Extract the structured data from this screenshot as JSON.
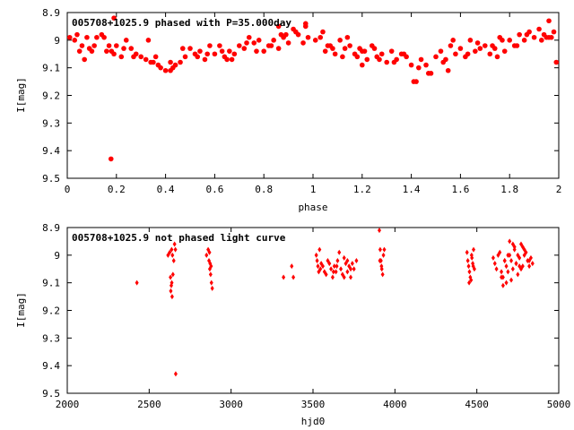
{
  "chart_data": [
    {
      "type": "scatter",
      "title": "005708+1025.9 phased with P=35.000day",
      "xlabel": "phase",
      "ylabel": "I[mag]",
      "xlim": [
        0,
        2
      ],
      "ylim": [
        8.9,
        9.5
      ],
      "y_inverted": true,
      "xticks": [
        "0",
        "0.2",
        "0.4",
        "0.6",
        "0.8",
        "1",
        "1.2",
        "1.4",
        "1.6",
        "1.8",
        "2"
      ],
      "yticks": [
        "8.9",
        "9",
        "9.1",
        "9.2",
        "9.3",
        "9.4",
        "9.5"
      ],
      "marker": "filled-circle",
      "color": "#ff0000",
      "series": [
        {
          "x": [
            0.01,
            0.04,
            0.05,
            0.06,
            0.08,
            0.09,
            0.11,
            0.14,
            0.15,
            0.17,
            0.18,
            0.19,
            0.2,
            0.22,
            0.24,
            0.26,
            0.28,
            0.3,
            0.32,
            0.34,
            0.36,
            0.38,
            0.4,
            0.42,
            0.44,
            0.46,
            0.48,
            0.5,
            0.52,
            0.54,
            0.56,
            0.58,
            0.6,
            0.62,
            0.64,
            0.66,
            0.68,
            0.7,
            0.72,
            0.74,
            0.76,
            0.78,
            0.8,
            0.82,
            0.84,
            0.86,
            0.88,
            0.9,
            0.92,
            0.94,
            0.96,
            0.98,
            1.01,
            1.04,
            1.05,
            1.06,
            1.08,
            1.09,
            1.11,
            1.14,
            1.15,
            1.17,
            1.19,
            1.2,
            1.22,
            1.24,
            1.26,
            1.28,
            1.3,
            1.32,
            1.34,
            1.36,
            1.38,
            1.4,
            1.42,
            1.44,
            1.46,
            1.48,
            1.5,
            1.52,
            1.54,
            1.56,
            1.58,
            1.6,
            1.62,
            1.64,
            1.66,
            1.68,
            1.7,
            1.72,
            1.74,
            1.76,
            1.78,
            1.8,
            1.82,
            1.84,
            1.86,
            1.88,
            1.9,
            1.92,
            1.94,
            1.96,
            1.98,
            0.03,
            0.07,
            0.12,
            0.16,
            0.23,
            0.27,
            0.33,
            0.37,
            0.43,
            0.47,
            0.53,
            0.57,
            0.63,
            0.67,
            0.73,
            0.77,
            0.83,
            0.87,
            0.93,
            0.97,
            1.03,
            1.07,
            1.13,
            1.18,
            1.21,
            1.27,
            1.33,
            1.37,
            1.43,
            1.47,
            1.53,
            1.57,
            1.63,
            1.67,
            1.73,
            1.77,
            1.83,
            1.87,
            1.93,
            1.97,
            0.178,
            0.19,
            0.42,
            0.86,
            1.41,
            1.99,
            1.96,
            1.2,
            0.97,
            0.1,
            0.35,
            0.65,
            0.89,
            1.12,
            1.25,
            1.55,
            1.75,
            1.95
          ],
          "y": [
            8.99,
            8.98,
            9.04,
            9.02,
            8.99,
            9.03,
            9.02,
            8.98,
            8.99,
            9.02,
            9.04,
            9.05,
            9.02,
            9.06,
            9.0,
            9.03,
            9.05,
            9.06,
            9.07,
            9.08,
            9.06,
            9.1,
            9.11,
            9.08,
            9.09,
            9.08,
            9.06,
            9.03,
            9.05,
            9.04,
            9.07,
            9.02,
            9.05,
            9.02,
            9.06,
            9.04,
            9.05,
            9.02,
            9.03,
            8.99,
            9.01,
            9.0,
            9.04,
            9.02,
            9.0,
            9.03,
            8.99,
            9.01,
            8.96,
            8.98,
            9.01,
            8.99,
            9.0,
            8.97,
            9.04,
            9.02,
            9.03,
            9.05,
            9.0,
            8.99,
            9.02,
            9.05,
            9.03,
            9.04,
            9.07,
            9.02,
            9.06,
            9.05,
            9.08,
            9.04,
            9.07,
            9.05,
            9.06,
            9.09,
            9.15,
            9.07,
            9.09,
            9.12,
            9.06,
            9.04,
            9.07,
            9.02,
            9.05,
            9.03,
            9.06,
            9.0,
            9.04,
            9.03,
            9.02,
            9.05,
            9.03,
            8.99,
            9.04,
            9.0,
            9.02,
            8.98,
            9.0,
            8.97,
            8.99,
            8.96,
            8.98,
            8.99,
            8.97,
            9.0,
            9.07,
            8.99,
            9.04,
            9.03,
            9.06,
            9.0,
            9.09,
            9.1,
            9.03,
            9.06,
            9.05,
            9.04,
            9.07,
            9.01,
            9.04,
            9.02,
            8.98,
            8.97,
            8.95,
            8.99,
            9.02,
            9.03,
            9.06,
            9.04,
            9.07,
            9.08,
            9.05,
            9.1,
            9.12,
            9.08,
            9.0,
            9.05,
            9.01,
            9.02,
            9.0,
            9.02,
            8.98,
            9.0,
            8.99,
            9.43,
            8.92,
            9.11,
            8.95,
            9.15,
            9.08,
            8.93,
            9.09,
            8.94,
            9.04,
            9.08,
            9.07,
            8.98,
            9.06,
            9.03,
            9.11,
            9.06,
            8.99
          ]
        }
      ]
    },
    {
      "type": "scatter",
      "title": "005708+1025.9 not phased light curve",
      "xlabel": "hjd0",
      "ylabel": "I[mag]",
      "xlim": [
        2000,
        5000
      ],
      "ylim": [
        8.9,
        9.5
      ],
      "y_inverted": true,
      "xticks": [
        "2000",
        "2500",
        "3000",
        "3500",
        "4000",
        "4500",
        "5000"
      ],
      "yticks": [
        "8.9",
        "9",
        "9.1",
        "9.2",
        "9.3",
        "9.4",
        "9.5"
      ],
      "marker": "diamond",
      "color": "#ff0000",
      "series": [
        {
          "x": [
            2425,
            2615,
            2625,
            2630,
            2635,
            2640,
            2645,
            2650,
            2655,
            2660,
            2632,
            2638,
            2642,
            2637,
            2662,
            2850,
            2860,
            2865,
            2870,
            2875,
            2880,
            2885,
            2868,
            2878,
            2872,
            3320,
            3370,
            3380,
            3520,
            3525,
            3530,
            3535,
            3540,
            3545,
            3550,
            3560,
            3570,
            3580,
            3590,
            3600,
            3610,
            3620,
            3630,
            3640,
            3650,
            3660,
            3670,
            3680,
            3690,
            3700,
            3710,
            3720,
            3730,
            3740,
            3750,
            3765,
            3645,
            3625,
            3690,
            3710,
            3730,
            3905,
            3910,
            3915,
            3920,
            3925,
            3930,
            3935,
            3918,
            3908,
            4440,
            4445,
            4450,
            4455,
            4460,
            4465,
            4470,
            4475,
            4480,
            4485,
            4453,
            4468,
            4478,
            4600,
            4610,
            4620,
            4630,
            4640,
            4650,
            4660,
            4670,
            4680,
            4690,
            4700,
            4710,
            4720,
            4730,
            4740,
            4750,
            4760,
            4770,
            4780,
            4790,
            4800,
            4810,
            4820,
            4830,
            4840,
            4650,
            4670,
            4690,
            4710,
            4730,
            4750,
            4770,
            4790,
            4660,
            4700,
            4740,
            4780,
            4820,
            4680,
            4720,
            4760
          ],
          "y": [
            9.1,
            9.0,
            8.99,
            9.08,
            9.11,
            9.15,
            9.07,
            9.02,
            8.96,
            8.98,
            9.13,
            9.1,
            9.0,
            8.98,
            9.43,
            9.0,
            8.98,
            9.02,
            9.05,
            9.07,
            9.1,
            9.12,
            8.99,
            9.04,
            9.03,
            9.08,
            9.04,
            9.08,
            9.0,
            9.02,
            9.04,
            9.06,
            8.98,
            9.05,
            9.03,
            9.04,
            9.06,
            9.07,
            9.02,
            9.03,
            9.05,
            9.08,
            9.04,
            9.06,
            9.02,
            8.99,
            9.05,
            9.07,
            9.01,
            9.03,
            9.06,
            9.04,
            9.08,
            9.03,
            9.05,
            9.02,
            9.04,
            9.06,
            9.08,
            9.02,
            9.05,
            8.91,
            8.98,
            9.02,
            9.05,
            9.07,
            9.0,
            8.98,
            9.04,
            9.02,
            8.99,
            9.02,
            9.04,
            9.06,
            9.08,
            9.09,
            9.01,
            9.03,
            8.98,
            9.05,
            9.1,
            9.0,
            9.04,
            9.01,
            9.03,
            9.05,
            9.0,
            8.99,
            9.06,
            9.08,
            9.02,
            9.04,
            9.0,
            8.95,
            9.02,
            9.05,
            8.98,
            9.03,
            9.07,
            9.01,
            8.96,
            9.04,
            9.0,
            8.99,
            9.02,
            9.04,
            9.01,
            9.03,
            9.08,
            9.02,
            9.06,
            9.09,
            8.97,
            9.0,
            9.05,
            8.98,
            9.11,
            9.0,
            9.03,
            8.97,
            9.02,
            9.1,
            8.96,
            9.04
          ]
        }
      ]
    }
  ]
}
